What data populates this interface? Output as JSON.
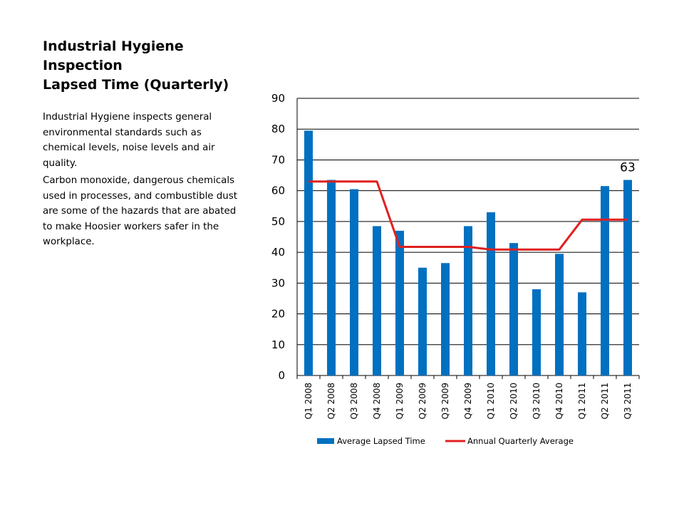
{
  "slide": {
    "title_lines": [
      "Industrial Hygiene",
      "Inspection",
      "Lapsed Time (Quarterly)"
    ],
    "paragraphs": [
      "Industrial Hygiene inspects general environmental standards such as chemical levels, noise levels and air quality.",
      "Carbon monoxide, dangerous chemicals used in processes, and combustible dust are some of the hazards that are abated to make Hoosier workers safer in the workplace."
    ]
  },
  "chart_data": {
    "type": "bar",
    "categories": [
      "Q1 2008",
      "Q2 2008",
      "Q3 2008",
      "Q4 2008",
      "Q1 2009",
      "Q2 2009",
      "Q3 2009",
      "Q4 2009",
      "Q1 2010",
      "Q2 2010",
      "Q3 2010",
      "Q4 2010",
      "Q1 2011",
      "Q2 2011",
      "Q3 2011"
    ],
    "series": [
      {
        "name": "Average Lapsed Time",
        "kind": "bar",
        "color": "#0070C0",
        "values": [
          79.5,
          63.5,
          60.5,
          48.5,
          47,
          35,
          36.5,
          48.5,
          53,
          43,
          28,
          39.5,
          27,
          61.5,
          63.5
        ]
      },
      {
        "name": "Annual Quarterly Average",
        "kind": "line",
        "color": "#E02020",
        "values": [
          63,
          63,
          63,
          63,
          41.75,
          41.75,
          41.75,
          41.75,
          40.9,
          40.9,
          40.9,
          40.9,
          50.6,
          50.6,
          50.6
        ]
      }
    ],
    "ylim": [
      0,
      90
    ],
    "yticks": [
      0,
      10,
      20,
      30,
      40,
      50,
      60,
      70,
      80,
      90
    ],
    "annotation": {
      "text": "63",
      "category": "Q3 2011",
      "value": 63.5
    },
    "gridlines": true,
    "legend": "bottom"
  }
}
